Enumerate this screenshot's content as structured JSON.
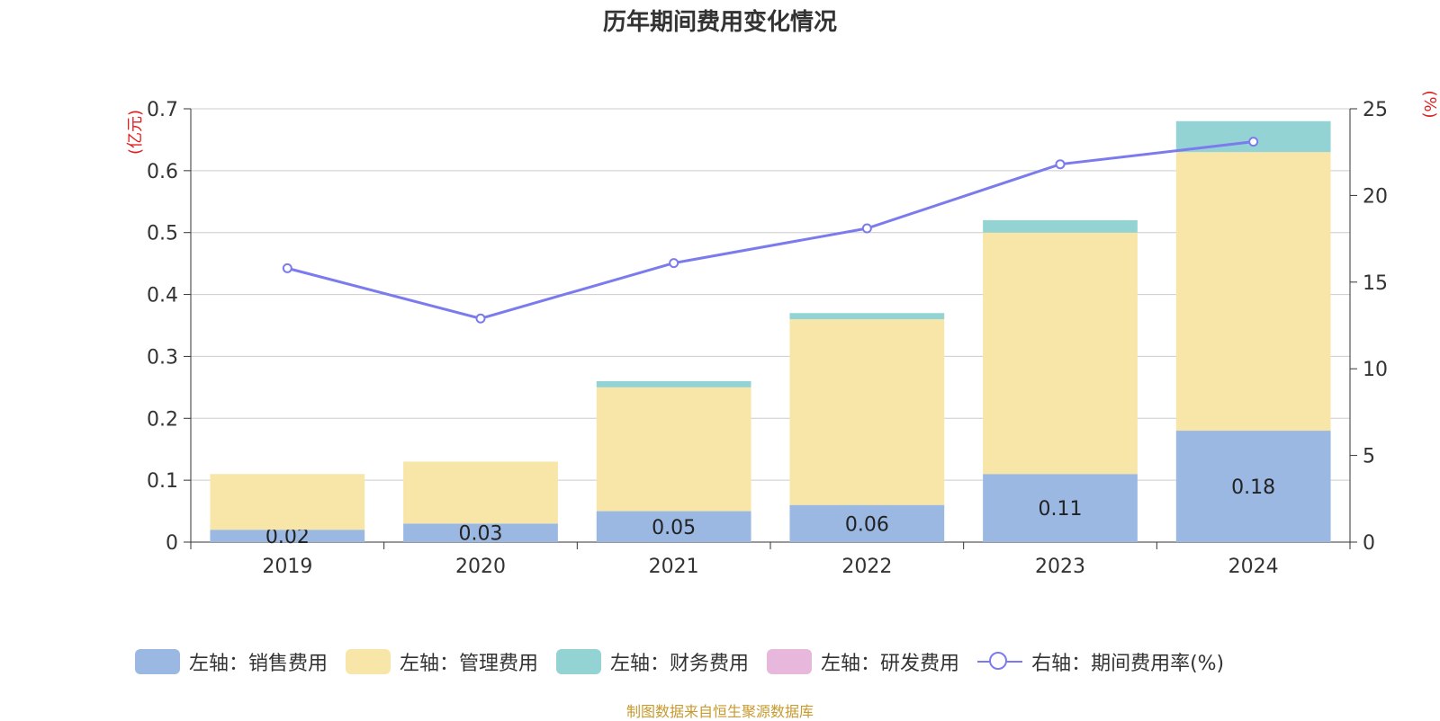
{
  "title": "历年期间费用变化情况",
  "credit": "制图数据来自恒生聚源数据库",
  "legend": [
    {
      "label": "左轴：销售费用",
      "color": "#9bb8e2",
      "kind": "bar"
    },
    {
      "label": "左轴：管理费用",
      "color": "#f7e6a7",
      "kind": "bar"
    },
    {
      "label": "左轴：财务费用",
      "color": "#94d3d4",
      "kind": "bar"
    },
    {
      "label": "左轴：研发费用",
      "color": "#e7b8dc",
      "kind": "bar"
    },
    {
      "label": "右轴：期间费用率(%)",
      "color": "#7b7bed",
      "kind": "line"
    }
  ],
  "chart_data": {
    "type": "bar",
    "stacked": true,
    "categories": [
      "2019",
      "2020",
      "2021",
      "2022",
      "2023",
      "2024"
    ],
    "series": [
      {
        "name": "左轴：销售费用",
        "axis": "left",
        "color": "#9bb8e2",
        "values": [
          0.02,
          0.03,
          0.05,
          0.06,
          0.11,
          0.18
        ],
        "labels": [
          "0.02",
          "0.03",
          "0.05",
          "0.06",
          "0.11",
          "0.18"
        ]
      },
      {
        "name": "左轴：管理费用",
        "axis": "left",
        "color": "#f7e6a7",
        "values": [
          0.09,
          0.1,
          0.2,
          0.3,
          0.39,
          0.45
        ]
      },
      {
        "name": "左轴：财务费用",
        "axis": "left",
        "color": "#94d3d4",
        "values": [
          0.0,
          0.0,
          0.01,
          0.01,
          0.02,
          0.05
        ]
      },
      {
        "name": "左轴：研发费用",
        "axis": "left",
        "color": "#e7b8dc",
        "values": [
          0,
          0,
          0,
          0,
          0,
          0
        ]
      },
      {
        "name": "右轴：期间费用率(%)",
        "axis": "right",
        "type": "line",
        "color": "#7b7bed",
        "values": [
          15.8,
          12.9,
          16.1,
          18.1,
          21.8,
          23.1
        ]
      }
    ],
    "y_left": {
      "unit": "(亿元)",
      "min": 0,
      "max": 0.7,
      "ticks": [
        "0",
        "0.1",
        "0.2",
        "0.3",
        "0.4",
        "0.5",
        "0.6",
        "0.7"
      ]
    },
    "y_right": {
      "unit": "(%)",
      "min": 0,
      "max": 25,
      "ticks": [
        "0",
        "5",
        "10",
        "15",
        "20",
        "25"
      ]
    },
    "grid": true,
    "legend_position": "bottom"
  }
}
